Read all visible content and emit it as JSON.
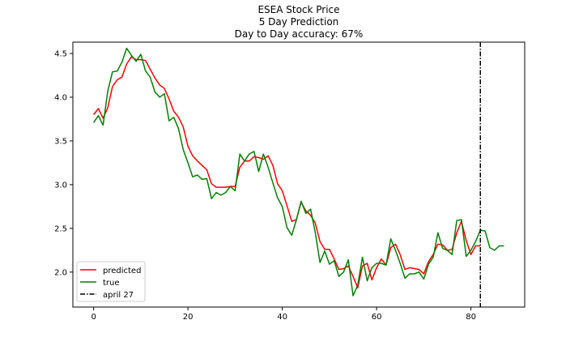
{
  "chart_data": {
    "type": "line",
    "title_lines": [
      "ESEA Stock Price",
      "5 Day Prediction",
      "Day to Day accuracy: 67%"
    ],
    "xlabel": "",
    "ylabel": "",
    "xlim": [
      -4.4,
      91.4
    ],
    "ylim": [
      1.6,
      4.63
    ],
    "xticks": [
      0,
      20,
      40,
      60,
      80
    ],
    "yticks": [
      2.0,
      2.5,
      3.0,
      3.5,
      4.0,
      4.5
    ],
    "ytick_labels": [
      "2.0",
      "2.5",
      "3.0",
      "3.5",
      "4.0",
      "4.5"
    ],
    "grid": false,
    "legend_position": "lower-left",
    "series": [
      {
        "name": "predicted",
        "color": "#ff0000",
        "x": [
          0,
          1,
          2,
          3,
          4,
          5,
          6,
          7,
          8,
          9,
          10,
          11,
          12,
          13,
          14,
          15,
          16,
          17,
          18,
          19,
          20,
          21,
          22,
          23,
          24,
          25,
          26,
          27,
          28,
          29,
          30,
          31,
          32,
          33,
          34,
          35,
          36,
          37,
          38,
          39,
          40,
          41,
          42,
          43,
          44,
          45,
          46,
          47,
          48,
          49,
          50,
          51,
          52,
          53,
          54,
          55,
          56,
          57,
          58,
          59,
          60,
          61,
          62,
          63,
          64,
          65,
          66,
          67,
          68,
          69,
          70,
          71,
          72,
          73,
          74,
          75,
          76,
          77,
          78,
          79,
          80,
          81,
          82
        ],
        "y": [
          3.8,
          3.87,
          3.76,
          3.88,
          4.12,
          4.2,
          4.23,
          4.38,
          4.46,
          4.43,
          4.43,
          4.42,
          4.32,
          4.22,
          4.14,
          4.1,
          3.98,
          3.84,
          3.77,
          3.66,
          3.44,
          3.33,
          3.27,
          3.22,
          3.17,
          3.01,
          2.97,
          2.97,
          2.97,
          2.98,
          2.98,
          3.2,
          3.27,
          3.27,
          3.32,
          3.31,
          3.29,
          3.33,
          3.22,
          3.01,
          2.93,
          2.76,
          2.58,
          2.6,
          2.8,
          2.7,
          2.65,
          2.56,
          2.35,
          2.26,
          2.26,
          2.15,
          2.03,
          2.04,
          2.07,
          1.95,
          1.82,
          2.07,
          2.1,
          1.91,
          2.05,
          2.15,
          2.08,
          2.28,
          2.32,
          2.2,
          2.03,
          2.05,
          2.04,
          2.03,
          1.98,
          2.12,
          2.2,
          2.32,
          2.31,
          2.25,
          2.26,
          2.45,
          2.58,
          2.36,
          2.2,
          2.3,
          2.3
        ]
      },
      {
        "name": "true",
        "color": "#008000",
        "x": [
          0,
          1,
          2,
          3,
          4,
          5,
          6,
          7,
          8,
          9,
          10,
          11,
          12,
          13,
          14,
          15,
          16,
          17,
          18,
          19,
          20,
          21,
          22,
          23,
          24,
          25,
          26,
          27,
          28,
          29,
          30,
          31,
          32,
          33,
          34,
          35,
          36,
          37,
          38,
          39,
          40,
          41,
          42,
          43,
          44,
          45,
          46,
          47,
          48,
          49,
          50,
          51,
          52,
          53,
          54,
          55,
          56,
          57,
          58,
          59,
          60,
          61,
          62,
          63,
          64,
          65,
          66,
          67,
          68,
          69,
          70,
          71,
          72,
          73,
          74,
          75,
          76,
          77,
          78,
          79,
          80,
          81,
          82,
          83,
          84,
          85,
          86,
          87
        ],
        "y": [
          3.71,
          3.79,
          3.68,
          4.07,
          4.29,
          4.3,
          4.4,
          4.56,
          4.48,
          4.41,
          4.49,
          4.3,
          4.23,
          4.06,
          4.0,
          4.04,
          3.73,
          3.77,
          3.64,
          3.4,
          3.25,
          3.09,
          3.11,
          3.06,
          3.07,
          2.84,
          2.91,
          2.88,
          2.91,
          2.98,
          2.93,
          3.35,
          3.27,
          3.35,
          3.38,
          3.15,
          3.35,
          3.2,
          3.02,
          2.85,
          2.75,
          2.51,
          2.42,
          2.6,
          2.81,
          2.67,
          2.72,
          2.45,
          2.11,
          2.24,
          2.09,
          2.13,
          1.95,
          2.0,
          2.14,
          1.73,
          1.85,
          2.17,
          1.9,
          2.05,
          2.1,
          2.1,
          2.08,
          2.38,
          2.25,
          2.1,
          1.93,
          1.98,
          1.98,
          2.0,
          1.92,
          2.09,
          2.17,
          2.45,
          2.27,
          2.25,
          2.2,
          2.59,
          2.6,
          2.18,
          2.25,
          2.35,
          2.48,
          2.47,
          2.28,
          2.25,
          2.3,
          2.3
        ]
      }
    ],
    "vline": {
      "x": 82,
      "label": "april 27",
      "color": "#000000",
      "style": "dash-dot"
    }
  }
}
